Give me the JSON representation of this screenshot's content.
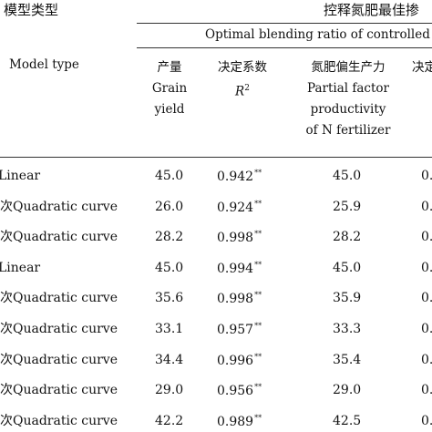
{
  "header": {
    "model_type_zh": "模型类型",
    "model_type_en": "Model type",
    "blend_ratio_zh": "控释氮肥最佳掺",
    "blend_ratio_en": "Optimal blending ratio of controlled",
    "columns": {
      "yield_zh": "产量",
      "yield_en_1": "Grain",
      "yield_en_2": "yield",
      "r2_zh": "决定系数",
      "r2_symbol": "R",
      "r2_exp": "2",
      "pfp_zh": "氮肥偏生产力",
      "pfp_en_1": "Partial factor",
      "pfp_en_2": "productivity",
      "pfp_en_3": "of N fertilizer",
      "r2b_zh": "决定"
    }
  },
  "significance_mark": "**",
  "rows": [
    {
      "model": "Linear",
      "yield": "45.0",
      "r2": "0.942",
      "pfp": "45.0",
      "r2b": "0."
    },
    {
      "model": "二次Quadratic curve",
      "yield": "26.0",
      "r2": "0.924",
      "pfp": "25.9",
      "r2b": "0."
    },
    {
      "model": "二次Quadratic curve",
      "yield": "28.2",
      "r2": "0.998",
      "pfp": "28.2",
      "r2b": "0."
    },
    {
      "model": "Linear",
      "yield": "45.0",
      "r2": "0.994",
      "pfp": "45.0",
      "r2b": "0."
    },
    {
      "model": "二次Quadratic curve",
      "yield": "35.6",
      "r2": "0.998",
      "pfp": "35.9",
      "r2b": "0."
    },
    {
      "model": "二次Quadratic curve",
      "yield": "33.1",
      "r2": "0.957",
      "pfp": "33.3",
      "r2b": "0."
    },
    {
      "model": "二次Quadratic curve",
      "yield": "34.4",
      "r2": "0.996",
      "pfp": "35.4",
      "r2b": "0."
    },
    {
      "model": "二次Quadratic curve",
      "yield": "29.0",
      "r2": "0.956",
      "pfp": "29.0",
      "r2b": "0."
    },
    {
      "model": "二次Quadratic curve",
      "yield": "42.2",
      "r2": "0.989",
      "pfp": "42.5",
      "r2b": "0."
    }
  ]
}
